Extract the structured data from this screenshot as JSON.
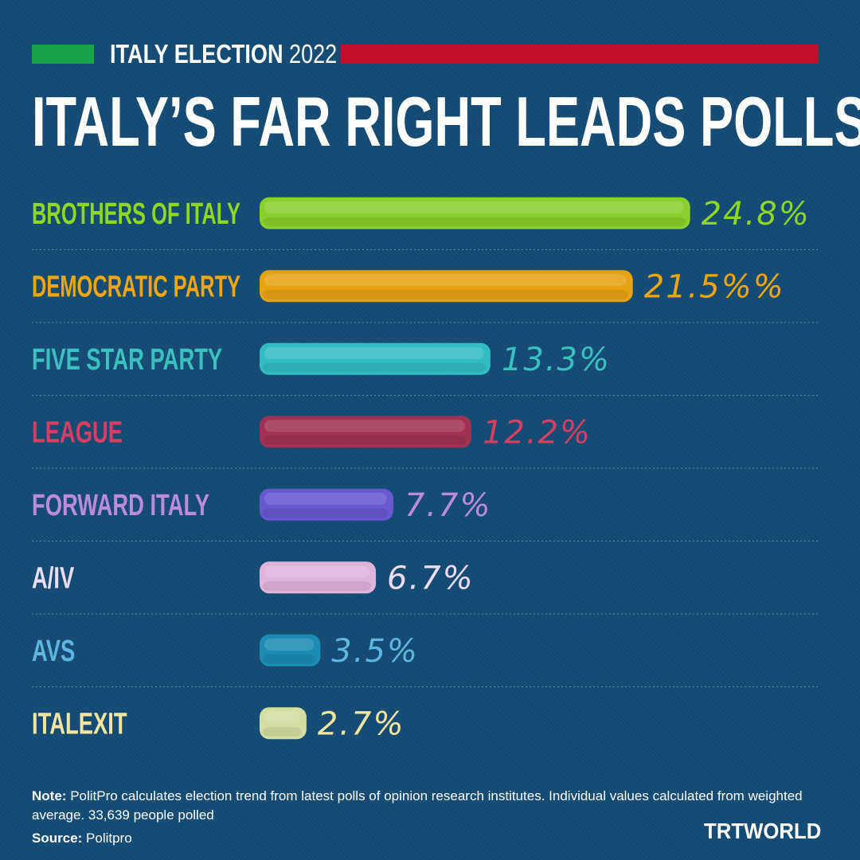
{
  "header": {
    "kicker_bold": "ITALY ELECTION",
    "kicker_year": "2022",
    "title": "ITALY’S FAR RIGHT LEADS POLLS",
    "flag_colors": {
      "green": "#18a24a",
      "red": "#c20f2a"
    }
  },
  "chart_data": {
    "type": "bar",
    "orientation": "horizontal",
    "title": "ITALY’S FAR RIGHT LEADS POLLS",
    "categories": [
      "BROTHERS OF ITALY",
      "DEMOCRATIC PARTY",
      "FIVE STAR PARTY",
      "LEAGUE",
      "FORWARD ITALY",
      "A/IV",
      "AVS",
      "ITALEXIT"
    ],
    "values": [
      24.8,
      21.5,
      13.3,
      12.2,
      7.7,
      6.7,
      3.5,
      2.7
    ],
    "value_labels": [
      "24.8%",
      "21.5%%",
      "13.3%",
      "12.2%",
      "7.7%",
      "6.7%",
      "3.5%",
      "2.7%"
    ],
    "colors": [
      "#8fd629",
      "#f2a60e",
      "#34c2c6",
      "#a83252",
      "#6a5ad6",
      "#eab8df",
      "#1e8fb7",
      "#dde6a4"
    ],
    "label_colors": [
      "#8fd629",
      "#f2a60e",
      "#3cc0bd",
      "#d83d63",
      "#bb8bdc",
      "#eadcf3",
      "#5db6df",
      "#f1e5a1"
    ],
    "unit": "%",
    "grid": false
  },
  "footer": {
    "note_label": "Note:",
    "note_text": "PolitPro calculates election trend from latest polls of opinion research institutes. Individual values calculated from weighted average. 33,639 people polled",
    "source_label": "Source:",
    "source_text": "Politpro",
    "brand": "TRTWORLD"
  }
}
